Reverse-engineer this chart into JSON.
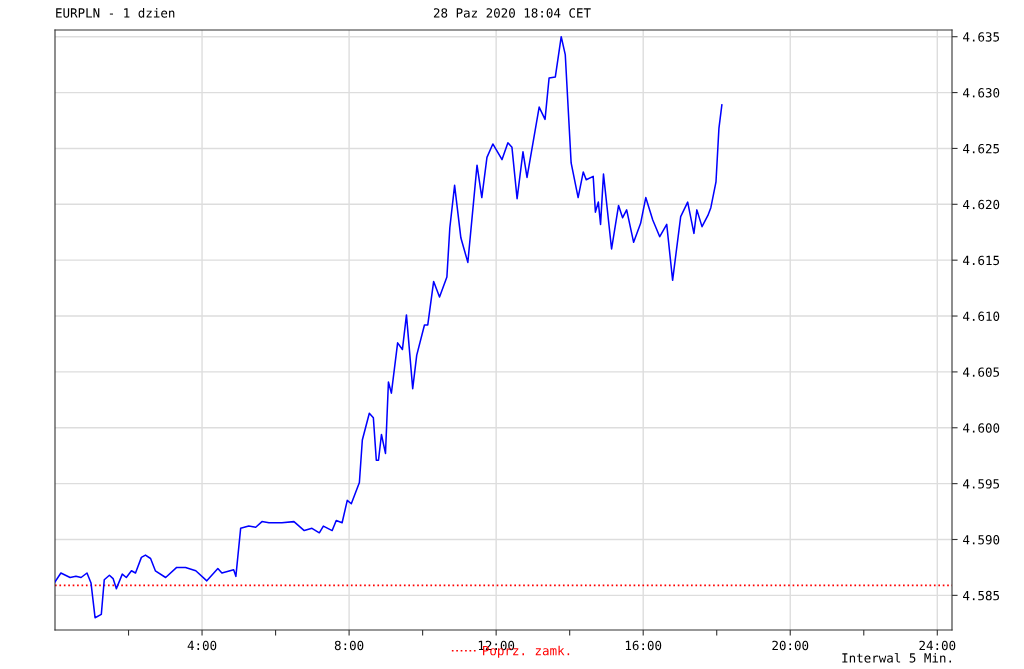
{
  "chart_data": {
    "type": "line",
    "title": "EURPLN - 1 dzien",
    "subtitle": "28 Paz 2020 18:04 CET",
    "annotations": [
      "Interwal 5 Min."
    ],
    "x": [
      0,
      0.16,
      0.41,
      0.57,
      0.71,
      0.87,
      0.98,
      1.09,
      1.26,
      1.34,
      1.48,
      1.58,
      1.67,
      1.83,
      1.94,
      2.08,
      2.19,
      2.35,
      2.46,
      2.6,
      2.73,
      3.01,
      3.31,
      3.55,
      3.83,
      4.13,
      4.43,
      4.54,
      4.86,
      4.92,
      5.05,
      5.27,
      5.46,
      5.63,
      5.82,
      6.17,
      6.5,
      6.78,
      6.99,
      7.19,
      7.3,
      7.54,
      7.65,
      7.81,
      7.95,
      8.06,
      8.28,
      8.36,
      8.55,
      8.66,
      8.74,
      8.8,
      8.88,
      8.99,
      9.07,
      9.15,
      9.32,
      9.45,
      9.56,
      9.73,
      9.84,
      10.05,
      10.14,
      10.3,
      10.46,
      10.66,
      10.74,
      10.87,
      11.04,
      11.23,
      11.48,
      11.61,
      11.75,
      11.91,
      12.16,
      12.32,
      12.43,
      12.57,
      12.73,
      12.84,
      13.17,
      13.33,
      13.44,
      13.61,
      13.77,
      13.88,
      14.04,
      14.23,
      14.37,
      14.45,
      14.64,
      14.7,
      14.78,
      14.84,
      14.92,
      15.14,
      15.33,
      15.44,
      15.55,
      15.74,
      15.93,
      16.07,
      16.26,
      16.45,
      16.64,
      16.8,
      17.02,
      17.21,
      17.38,
      17.46,
      17.6,
      17.76,
      17.84,
      17.98,
      18.06,
      18.14
    ],
    "series": [
      {
        "color": "#0000ff",
        "values": [
          4.5862,
          4.587,
          4.5866,
          4.5867,
          4.5866,
          4.587,
          4.5861,
          4.583,
          4.5833,
          4.5864,
          4.5868,
          4.5865,
          4.5856,
          4.5869,
          4.5866,
          4.5872,
          4.587,
          4.5884,
          4.5886,
          4.5883,
          4.5872,
          4.5866,
          4.5875,
          4.5875,
          4.5872,
          4.5863,
          4.5874,
          4.587,
          4.5873,
          4.5867,
          4.591,
          4.5912,
          4.5911,
          4.5916,
          4.5915,
          4.5915,
          4.5916,
          4.5908,
          4.591,
          4.5906,
          4.5912,
          4.5908,
          4.5917,
          4.5915,
          4.5935,
          4.5932,
          4.5951,
          4.5989,
          4.6013,
          4.6009,
          4.5971,
          4.5971,
          4.5994,
          4.5977,
          4.6041,
          4.6031,
          4.6076,
          4.607,
          4.6101,
          4.6035,
          4.6065,
          4.6092,
          4.6092,
          4.6131,
          4.6117,
          4.6135,
          4.6179,
          4.6217,
          4.617,
          4.6148,
          4.6235,
          4.6206,
          4.6242,
          4.6254,
          4.624,
          4.6255,
          4.6251,
          4.6205,
          4.6247,
          4.6224,
          4.6287,
          4.6276,
          4.6313,
          4.6314,
          4.635,
          4.6334,
          4.6237,
          4.6206,
          4.6229,
          4.6222,
          4.6225,
          4.6193,
          4.6202,
          4.6182,
          4.6227,
          4.616,
          4.6199,
          4.6188,
          4.6195,
          4.6166,
          4.6183,
          4.6206,
          4.6186,
          4.6171,
          4.6182,
          4.6132,
          4.6189,
          4.6202,
          4.6174,
          4.6195,
          4.618,
          4.619,
          4.6197,
          4.622,
          4.6268,
          4.6289
        ]
      }
    ],
    "xlim": [
      0,
      24.4
    ],
    "ylim": [
      4.5819,
      4.6356
    ],
    "xticks": [
      {
        "value": 2,
        "label": null
      },
      {
        "value": 4,
        "label": "4:00"
      },
      {
        "value": 6,
        "label": null
      },
      {
        "value": 8,
        "label": "8:00"
      },
      {
        "value": 10,
        "label": null
      },
      {
        "value": 12,
        "label": "12:00"
      },
      {
        "value": 14,
        "label": null
      },
      {
        "value": 16,
        "label": "16:00"
      },
      {
        "value": 18,
        "label": null
      },
      {
        "value": 20,
        "label": "20:00"
      },
      {
        "value": 22,
        "label": null
      },
      {
        "value": 24,
        "label": "24:00"
      }
    ],
    "yticks": [
      4.585,
      {
        "value": 4.59,
        "label": "4.590"
      },
      4.595,
      {
        "value": 4.6,
        "label": "4.600"
      },
      4.605,
      {
        "value": 4.61,
        "label": "4.610"
      },
      4.615,
      {
        "value": 4.62,
        "label": "4.620"
      },
      4.625,
      {
        "value": 4.63,
        "label": "4.630"
      },
      4.635
    ],
    "ref_lines": [
      {
        "axis": "y",
        "value": 4.5859,
        "label": "Poprz. zamk.",
        "color": "#ff0000",
        "line_style": "dotted"
      }
    ],
    "grid": true,
    "legend": "bottom",
    "marker": "none",
    "line_style": "solid"
  }
}
